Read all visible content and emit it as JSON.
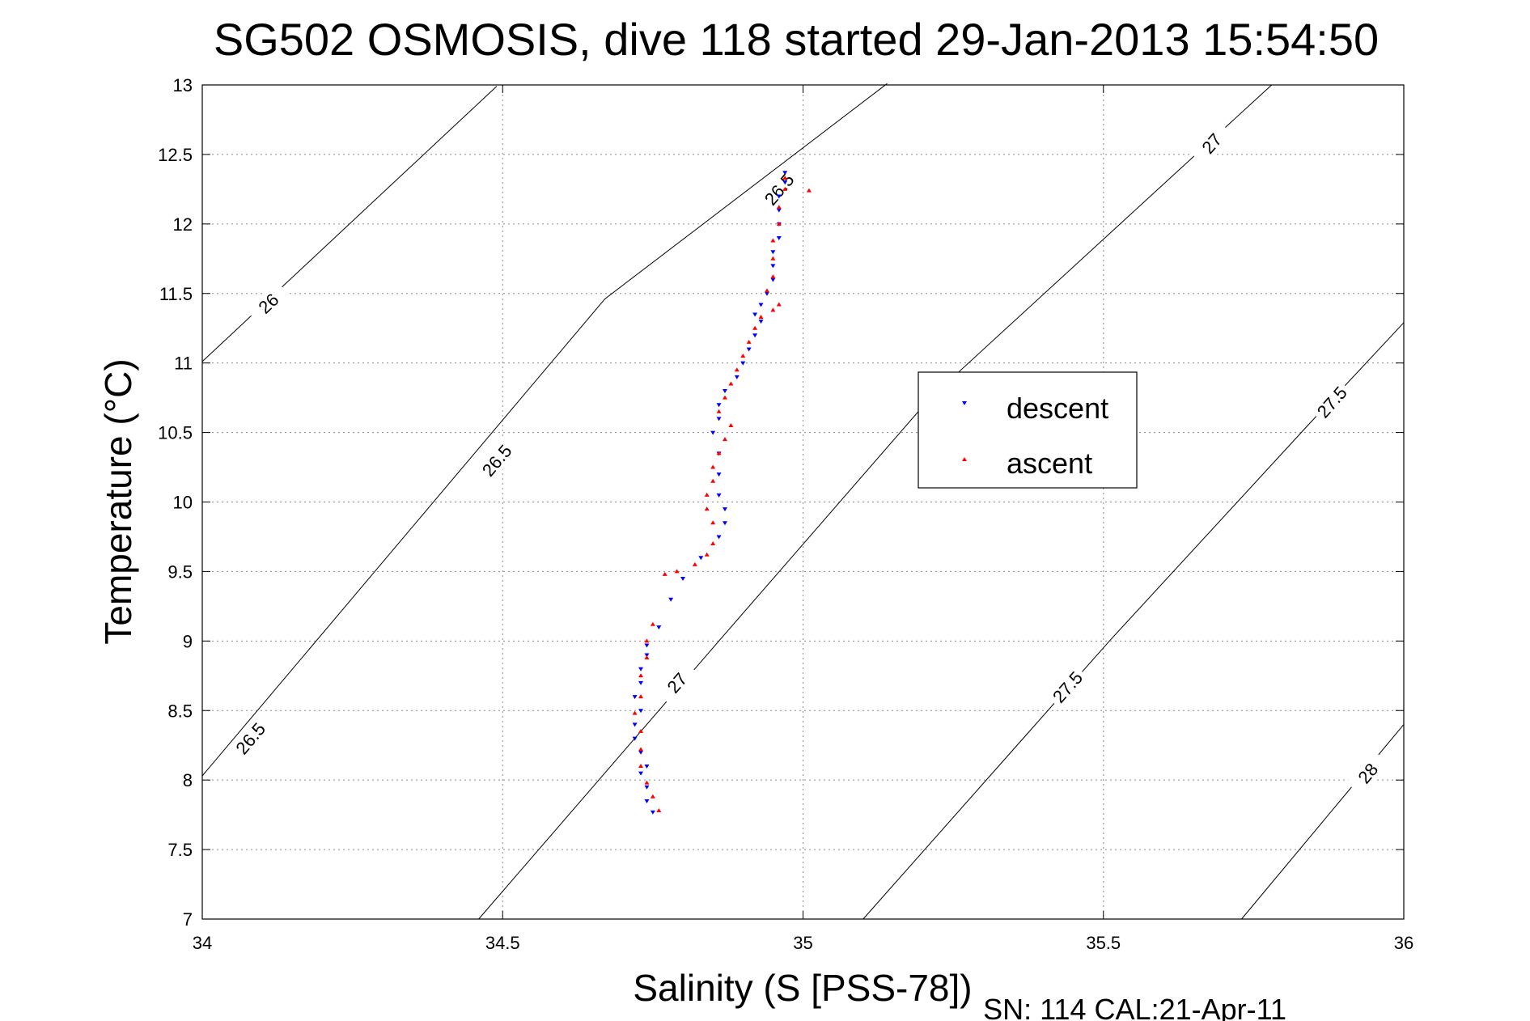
{
  "chart_data": {
    "type": "scatter",
    "title": "SG502 OSMOSIS, dive 118 started 29-Jan-2013 15:54:50",
    "xlabel": "Salinity (S [PSS-78])",
    "ylabel": "Temperature (°C)",
    "footnote": "SN: 114  CAL:21-Apr-11",
    "xlim": [
      34,
      36
    ],
    "ylim": [
      7,
      13
    ],
    "xticks": [
      "34",
      "34.5",
      "35",
      "35.5",
      "36"
    ],
    "yticks": [
      "7",
      "7.5",
      "8",
      "8.5",
      "9",
      "9.5",
      "10",
      "10.5",
      "11",
      "11.5",
      "12",
      "12.5",
      "13"
    ],
    "grid": true,
    "legend_position": "center-right",
    "series": [
      {
        "name": "descent",
        "color": "#0000ff",
        "marker": "triangle-down",
        "points": [
          [
            34.75,
            7.77
          ],
          [
            34.74,
            7.85
          ],
          [
            34.74,
            7.95
          ],
          [
            34.73,
            8.05
          ],
          [
            34.74,
            8.1
          ],
          [
            34.73,
            8.2
          ],
          [
            34.72,
            8.3
          ],
          [
            34.72,
            8.4
          ],
          [
            34.73,
            8.5
          ],
          [
            34.72,
            8.6
          ],
          [
            34.73,
            8.7
          ],
          [
            34.73,
            8.8
          ],
          [
            34.74,
            8.9
          ],
          [
            34.74,
            8.97
          ],
          [
            34.76,
            9.1
          ],
          [
            34.78,
            9.3
          ],
          [
            34.8,
            9.45
          ],
          [
            34.83,
            9.6
          ],
          [
            34.86,
            9.75
          ],
          [
            34.87,
            9.85
          ],
          [
            34.87,
            9.95
          ],
          [
            34.86,
            10.05
          ],
          [
            34.86,
            10.2
          ],
          [
            34.86,
            10.35
          ],
          [
            34.85,
            10.5
          ],
          [
            34.86,
            10.6
          ],
          [
            34.86,
            10.7
          ],
          [
            34.87,
            10.8
          ],
          [
            34.89,
            10.9
          ],
          [
            34.9,
            11.0
          ],
          [
            34.91,
            11.1
          ],
          [
            34.92,
            11.2
          ],
          [
            34.93,
            11.3
          ],
          [
            34.92,
            11.35
          ],
          [
            34.93,
            11.42
          ],
          [
            34.94,
            11.5
          ],
          [
            34.95,
            11.6
          ],
          [
            34.95,
            11.7
          ],
          [
            34.95,
            11.8
          ],
          [
            34.96,
            11.9
          ],
          [
            34.96,
            12.0
          ],
          [
            34.96,
            12.1
          ],
          [
            34.96,
            12.2
          ],
          [
            34.97,
            12.3
          ],
          [
            34.97,
            12.37
          ]
        ]
      },
      {
        "name": "ascent",
        "color": "#ff0000",
        "marker": "triangle-up",
        "points": [
          [
            34.76,
            7.78
          ],
          [
            34.75,
            7.88
          ],
          [
            34.74,
            7.98
          ],
          [
            34.73,
            8.1
          ],
          [
            34.73,
            8.22
          ],
          [
            34.73,
            8.35
          ],
          [
            34.72,
            8.48
          ],
          [
            34.73,
            8.6
          ],
          [
            34.73,
            8.75
          ],
          [
            34.74,
            8.88
          ],
          [
            34.74,
            9.0
          ],
          [
            34.75,
            9.12
          ],
          [
            34.77,
            9.48
          ],
          [
            34.79,
            9.5
          ],
          [
            34.82,
            9.55
          ],
          [
            34.84,
            9.62
          ],
          [
            34.85,
            9.7
          ],
          [
            34.85,
            9.85
          ],
          [
            34.84,
            9.95
          ],
          [
            34.84,
            10.05
          ],
          [
            34.85,
            10.15
          ],
          [
            34.85,
            10.25
          ],
          [
            34.86,
            10.35
          ],
          [
            34.87,
            10.45
          ],
          [
            34.88,
            10.55
          ],
          [
            34.86,
            10.65
          ],
          [
            34.87,
            10.75
          ],
          [
            34.88,
            10.85
          ],
          [
            34.89,
            10.95
          ],
          [
            34.9,
            11.05
          ],
          [
            34.91,
            11.15
          ],
          [
            34.92,
            11.25
          ],
          [
            34.93,
            11.33
          ],
          [
            34.95,
            11.38
          ],
          [
            34.96,
            11.42
          ],
          [
            34.94,
            11.52
          ],
          [
            34.95,
            11.62
          ],
          [
            34.95,
            11.75
          ],
          [
            34.95,
            11.88
          ],
          [
            34.96,
            12.0
          ],
          [
            34.96,
            12.12
          ],
          [
            34.97,
            12.25
          ],
          [
            34.97,
            12.33
          ],
          [
            35.01,
            12.24
          ]
        ]
      }
    ],
    "density_contours": [
      {
        "label": "26",
        "points": [
          [
            34.0,
            11.01
          ],
          [
            34.49,
            12.99
          ]
        ],
        "label_positions": [
          [
            34.11,
            11.43
          ]
        ]
      },
      {
        "label": "26.5",
        "points": [
          [
            34.0,
            8.03
          ],
          [
            34.67,
            11.46
          ],
          [
            35.14,
            13.01
          ]
        ],
        "label_positions": [
          [
            34.08,
            8.3
          ],
          [
            34.49,
            10.3
          ],
          [
            34.96,
            12.25
          ]
        ]
      },
      {
        "label": "27",
        "points": [
          [
            34.46,
            7.0
          ],
          [
            34.86,
            9.0
          ],
          [
            35.21,
            10.74
          ],
          [
            35.78,
            13.0
          ]
        ],
        "label_positions": [
          [
            34.79,
            8.7
          ],
          [
            35.68,
            12.58
          ]
        ]
      },
      {
        "label": "27.5",
        "points": [
          [
            35.1,
            7.0
          ],
          [
            35.51,
            9.0
          ],
          [
            35.84,
            10.55
          ],
          [
            36.0,
            11.29
          ]
        ],
        "label_positions": [
          [
            35.44,
            8.67
          ],
          [
            35.88,
            10.72
          ]
        ]
      },
      {
        "label": "28",
        "points": [
          [
            35.73,
            7.0
          ],
          [
            36.0,
            8.4
          ]
        ],
        "label_positions": [
          [
            35.94,
            8.05
          ]
        ]
      }
    ]
  }
}
